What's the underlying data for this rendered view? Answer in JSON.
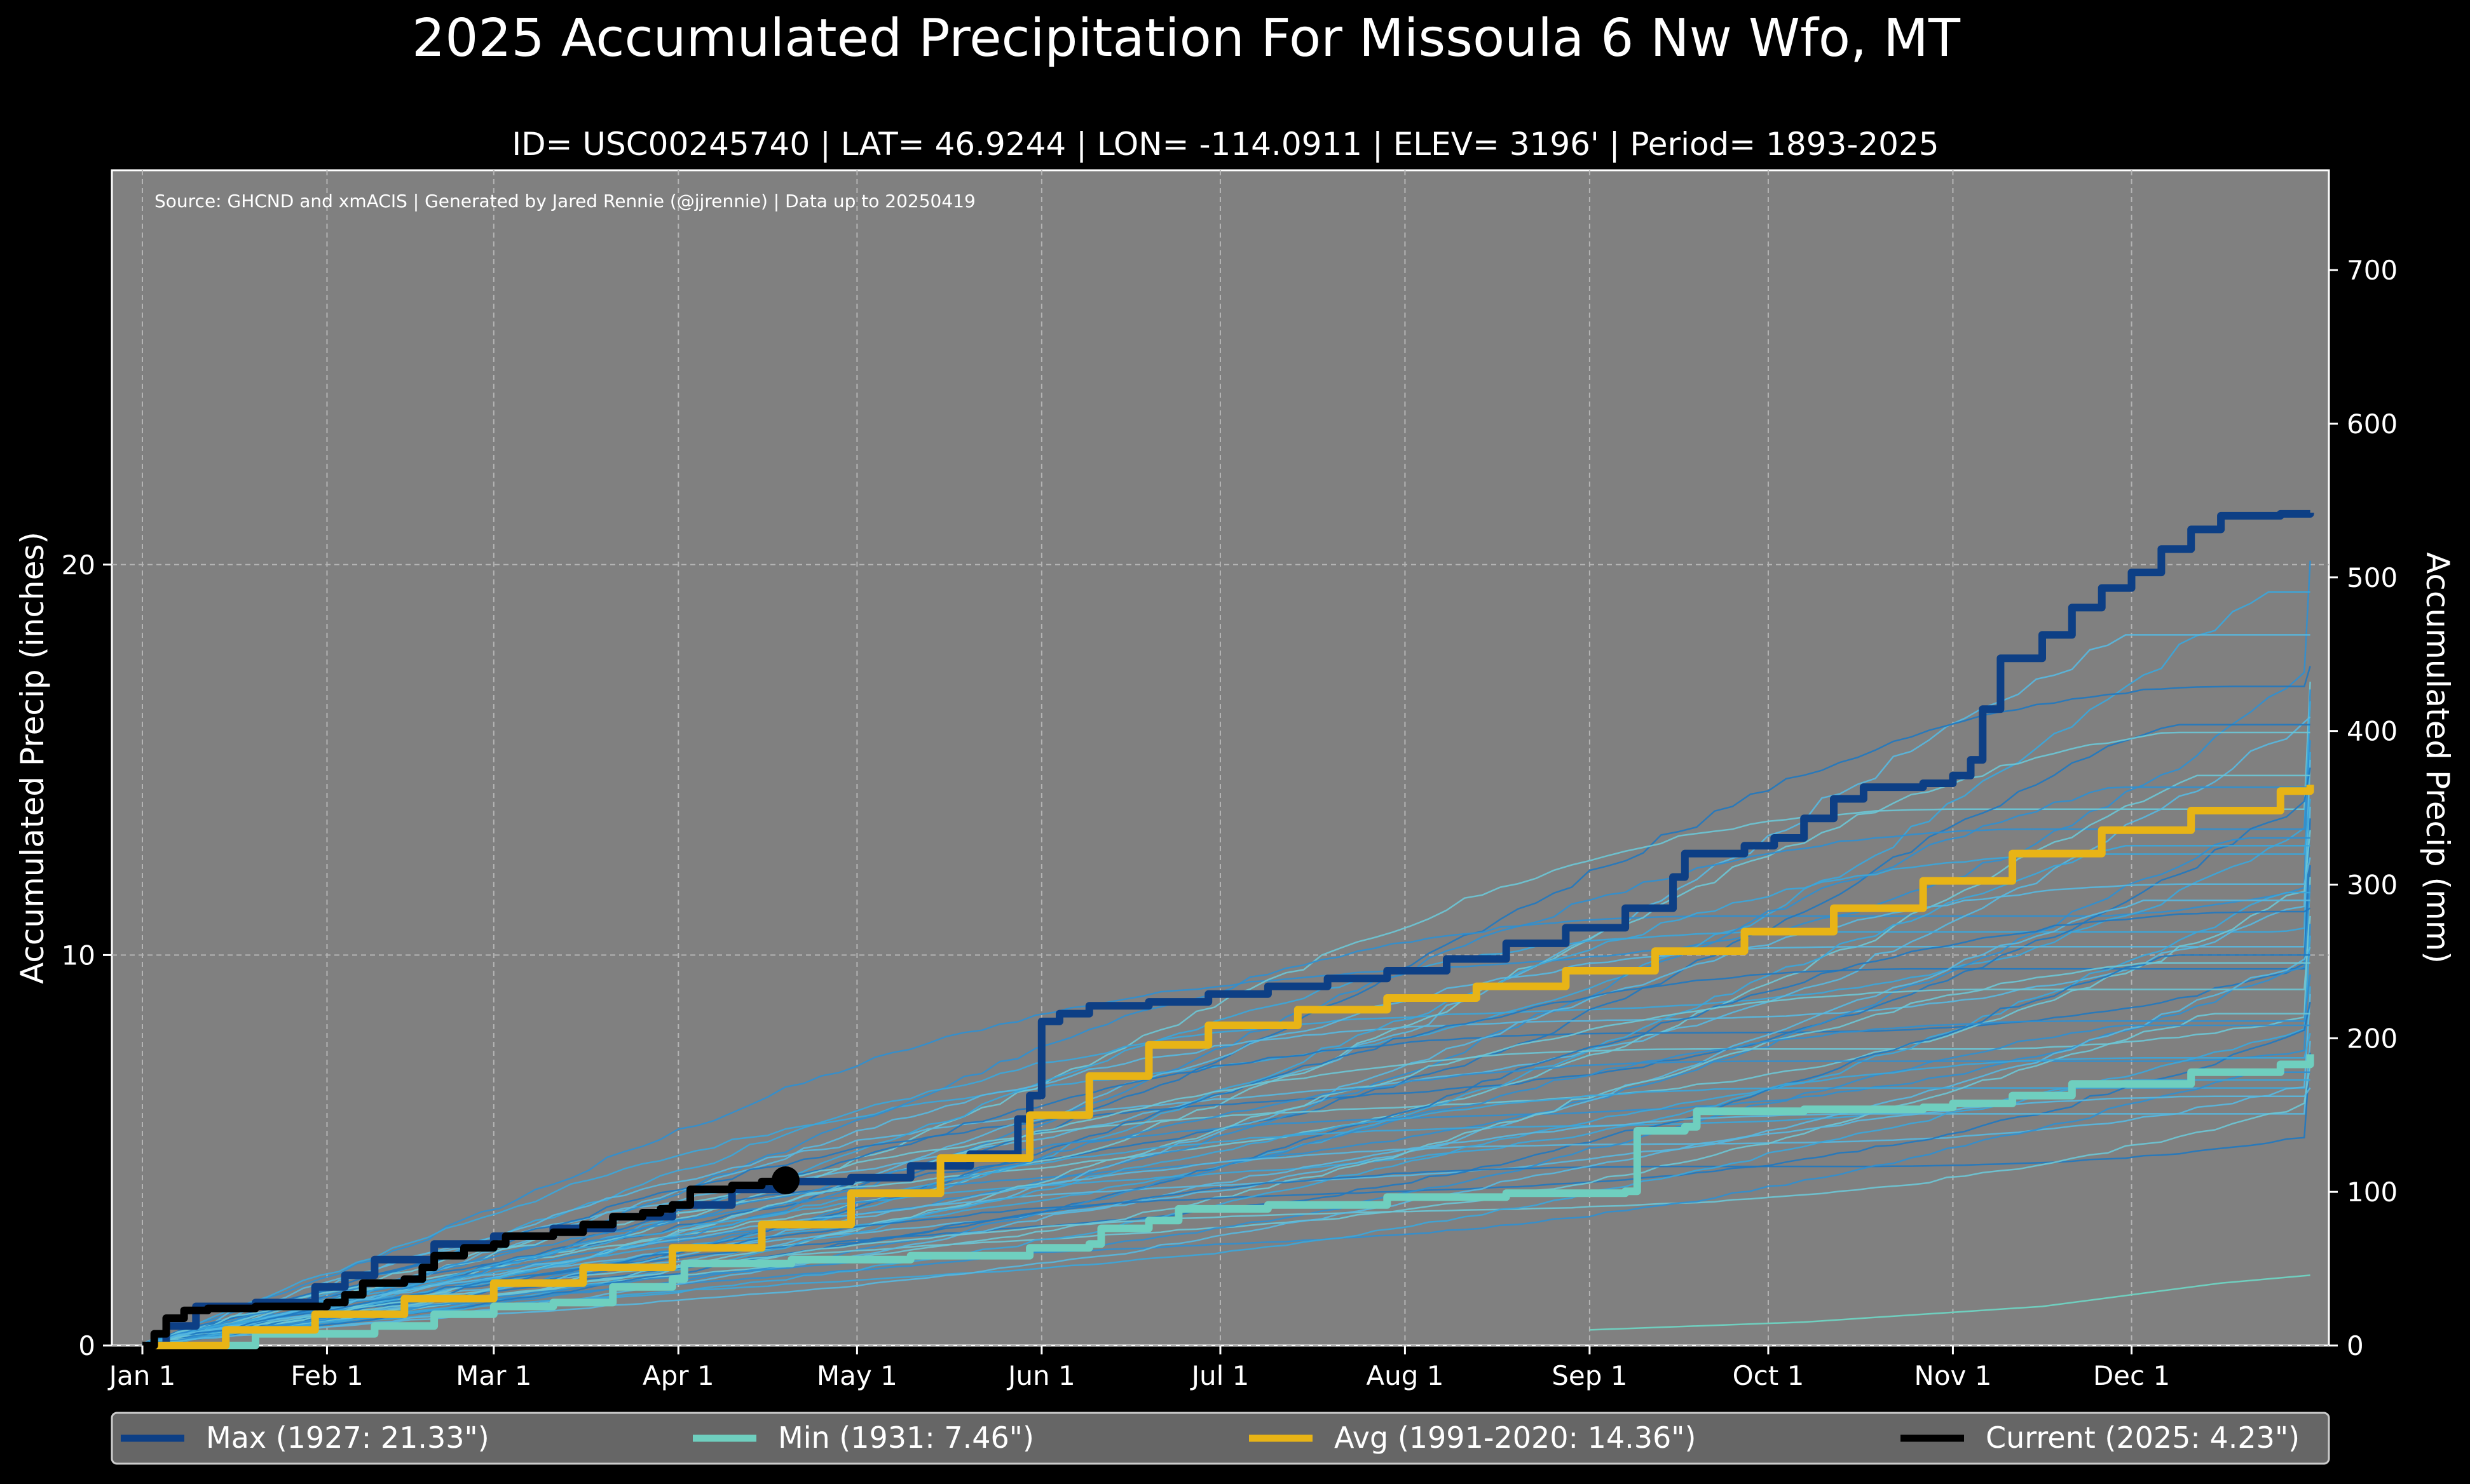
{
  "chart_data": {
    "type": "line",
    "title": "2025 Accumulated Precipitation For Missoula 6 Nw Wfo, MT",
    "subtitle": "ID= USC00245740 | LAT= 46.9244 | LON= -114.0911 | ELEV= 3196' | Period= 1893-2025",
    "source": "Source: GHCND and xmACIS | Generated by Jared Rennie (@jjrennie) | Data up to 20250419",
    "ylabel": "Accumulated Precip (inches)",
    "ylabel_right": "Accumulated Precip (mm)",
    "xlabel": "",
    "xlim": [
      1,
      366
    ],
    "ylim": [
      0,
      30.1
    ],
    "ylim_right_mm": [
      0,
      765
    ],
    "grid": true,
    "x_ticks": [
      {
        "day": 1,
        "label": "Jan 1"
      },
      {
        "day": 32,
        "label": "Feb 1"
      },
      {
        "day": 60,
        "label": "Mar 1"
      },
      {
        "day": 91,
        "label": "Apr 1"
      },
      {
        "day": 121,
        "label": "May 1"
      },
      {
        "day": 152,
        "label": "Jun 1"
      },
      {
        "day": 182,
        "label": "Jul 1"
      },
      {
        "day": 213,
        "label": "Aug 1"
      },
      {
        "day": 244,
        "label": "Sep 1"
      },
      {
        "day": 274,
        "label": "Oct 1"
      },
      {
        "day": 305,
        "label": "Nov 1"
      },
      {
        "day": 335,
        "label": "Dec 1"
      }
    ],
    "y_ticks_left": [
      "0",
      "10",
      "20"
    ],
    "y_ticks_right": [
      "0",
      "100",
      "200",
      "300",
      "400",
      "500",
      "600",
      "700"
    ],
    "legend_position": "bottom",
    "legend": [
      {
        "label": "Max (1927:  21.33\")",
        "color": "#0d3f85"
      },
      {
        "label": "Min (1931:   7.46\")",
        "color": "#6fcfbf"
      },
      {
        "label": "Avg (1991-2020:  14.36\")",
        "color": "#e8b416"
      },
      {
        "label": "Current (2025:   4.23\")",
        "color": "#000000"
      }
    ],
    "background_years_finals": [
      20.1,
      19.3,
      18.2,
      17.4,
      17.0,
      16.8,
      16.5,
      16.1,
      15.9,
      15.7,
      15.5,
      15.2,
      15.0,
      14.8,
      14.6,
      14.3,
      14.0,
      13.8,
      13.5,
      13.2,
      13.0,
      12.8,
      12.5,
      12.3,
      12.0,
      11.8,
      11.6,
      11.4,
      11.2,
      11.0,
      10.8,
      10.5,
      10.2,
      10.0,
      9.8,
      9.5,
      9.2,
      9.0,
      8.8,
      8.5,
      8.2,
      8.0,
      7.8,
      7.5,
      7.2,
      7.0,
      6.8,
      6.6
    ],
    "series": [
      {
        "name": "Max (1927)",
        "color": "#0d3f85",
        "width": 12,
        "points": [
          [
            1,
            0
          ],
          [
            5,
            0.5
          ],
          [
            10,
            1.0
          ],
          [
            20,
            1.1
          ],
          [
            30,
            1.5
          ],
          [
            35,
            1.8
          ],
          [
            40,
            2.2
          ],
          [
            50,
            2.6
          ],
          [
            60,
            2.8
          ],
          [
            70,
            3.0
          ],
          [
            80,
            3.3
          ],
          [
            90,
            3.6
          ],
          [
            100,
            4.0
          ],
          [
            110,
            4.2
          ],
          [
            120,
            4.3
          ],
          [
            130,
            4.6
          ],
          [
            140,
            4.9
          ],
          [
            148,
            5.8
          ],
          [
            150,
            6.4
          ],
          [
            152,
            8.3
          ],
          [
            155,
            8.5
          ],
          [
            160,
            8.7
          ],
          [
            170,
            8.8
          ],
          [
            180,
            9.0
          ],
          [
            190,
            9.2
          ],
          [
            200,
            9.4
          ],
          [
            210,
            9.6
          ],
          [
            220,
            9.9
          ],
          [
            230,
            10.3
          ],
          [
            240,
            10.7
          ],
          [
            250,
            11.2
          ],
          [
            258,
            12.0
          ],
          [
            260,
            12.6
          ],
          [
            270,
            12.8
          ],
          [
            275,
            13.0
          ],
          [
            280,
            13.5
          ],
          [
            285,
            14.0
          ],
          [
            290,
            14.3
          ],
          [
            300,
            14.4
          ],
          [
            305,
            14.6
          ],
          [
            308,
            15.0
          ],
          [
            310,
            16.3
          ],
          [
            313,
            17.6
          ],
          [
            320,
            18.2
          ],
          [
            325,
            18.9
          ],
          [
            330,
            19.4
          ],
          [
            335,
            19.8
          ],
          [
            340,
            20.4
          ],
          [
            345,
            20.9
          ],
          [
            350,
            21.25
          ],
          [
            360,
            21.3
          ],
          [
            365,
            21.33
          ]
        ]
      },
      {
        "name": "Min (1931)",
        "color": "#6fcfbf",
        "width": 12,
        "points": [
          [
            1,
            0
          ],
          [
            20,
            0.3
          ],
          [
            40,
            0.5
          ],
          [
            50,
            0.8
          ],
          [
            60,
            1.0
          ],
          [
            70,
            1.1
          ],
          [
            80,
            1.5
          ],
          [
            90,
            1.7
          ],
          [
            92,
            2.1
          ],
          [
            110,
            2.2
          ],
          [
            130,
            2.3
          ],
          [
            150,
            2.5
          ],
          [
            160,
            2.6
          ],
          [
            162,
            3.0
          ],
          [
            170,
            3.2
          ],
          [
            175,
            3.5
          ],
          [
            190,
            3.6
          ],
          [
            210,
            3.8
          ],
          [
            230,
            3.9
          ],
          [
            245,
            3.9
          ],
          [
            250,
            3.95
          ],
          [
            252,
            5.5
          ],
          [
            260,
            5.6
          ],
          [
            262,
            6.0
          ],
          [
            280,
            6.05
          ],
          [
            300,
            6.1
          ],
          [
            305,
            6.2
          ],
          [
            315,
            6.4
          ],
          [
            325,
            6.7
          ],
          [
            345,
            7.0
          ],
          [
            360,
            7.2
          ],
          [
            365,
            7.46
          ]
        ]
      },
      {
        "name": "Avg (1991-2020)",
        "color": "#e8b416",
        "width": 12,
        "points": [
          [
            1,
            0
          ],
          [
            15,
            0.4
          ],
          [
            30,
            0.8
          ],
          [
            45,
            1.2
          ],
          [
            60,
            1.6
          ],
          [
            75,
            2.0
          ],
          [
            90,
            2.5
          ],
          [
            105,
            3.1
          ],
          [
            120,
            3.9
          ],
          [
            135,
            4.8
          ],
          [
            150,
            5.9
          ],
          [
            160,
            6.9
          ],
          [
            170,
            7.7
          ],
          [
            180,
            8.2
          ],
          [
            195,
            8.6
          ],
          [
            210,
            8.9
          ],
          [
            225,
            9.2
          ],
          [
            240,
            9.6
          ],
          [
            255,
            10.1
          ],
          [
            270,
            10.6
          ],
          [
            285,
            11.2
          ],
          [
            300,
            11.9
          ],
          [
            315,
            12.6
          ],
          [
            330,
            13.2
          ],
          [
            345,
            13.7
          ],
          [
            360,
            14.2
          ],
          [
            365,
            14.36
          ]
        ]
      },
      {
        "name": "Current (2025)",
        "color": "#000000",
        "width": 12,
        "points": [
          [
            1,
            0
          ],
          [
            3,
            0.3
          ],
          [
            5,
            0.7
          ],
          [
            8,
            0.9
          ],
          [
            12,
            0.95
          ],
          [
            20,
            1.0
          ],
          [
            30,
            1.0
          ],
          [
            32,
            1.1
          ],
          [
            35,
            1.3
          ],
          [
            38,
            1.6
          ],
          [
            45,
            1.7
          ],
          [
            48,
            2.0
          ],
          [
            50,
            2.3
          ],
          [
            55,
            2.5
          ],
          [
            60,
            2.6
          ],
          [
            62,
            2.8
          ],
          [
            70,
            2.9
          ],
          [
            75,
            3.1
          ],
          [
            80,
            3.3
          ],
          [
            85,
            3.4
          ],
          [
            88,
            3.5
          ],
          [
            90,
            3.6
          ],
          [
            93,
            4.0
          ],
          [
            100,
            4.1
          ],
          [
            105,
            4.2
          ],
          [
            109,
            4.23
          ]
        ]
      }
    ],
    "current_marker": {
      "day": 109,
      "value": 4.23
    }
  }
}
